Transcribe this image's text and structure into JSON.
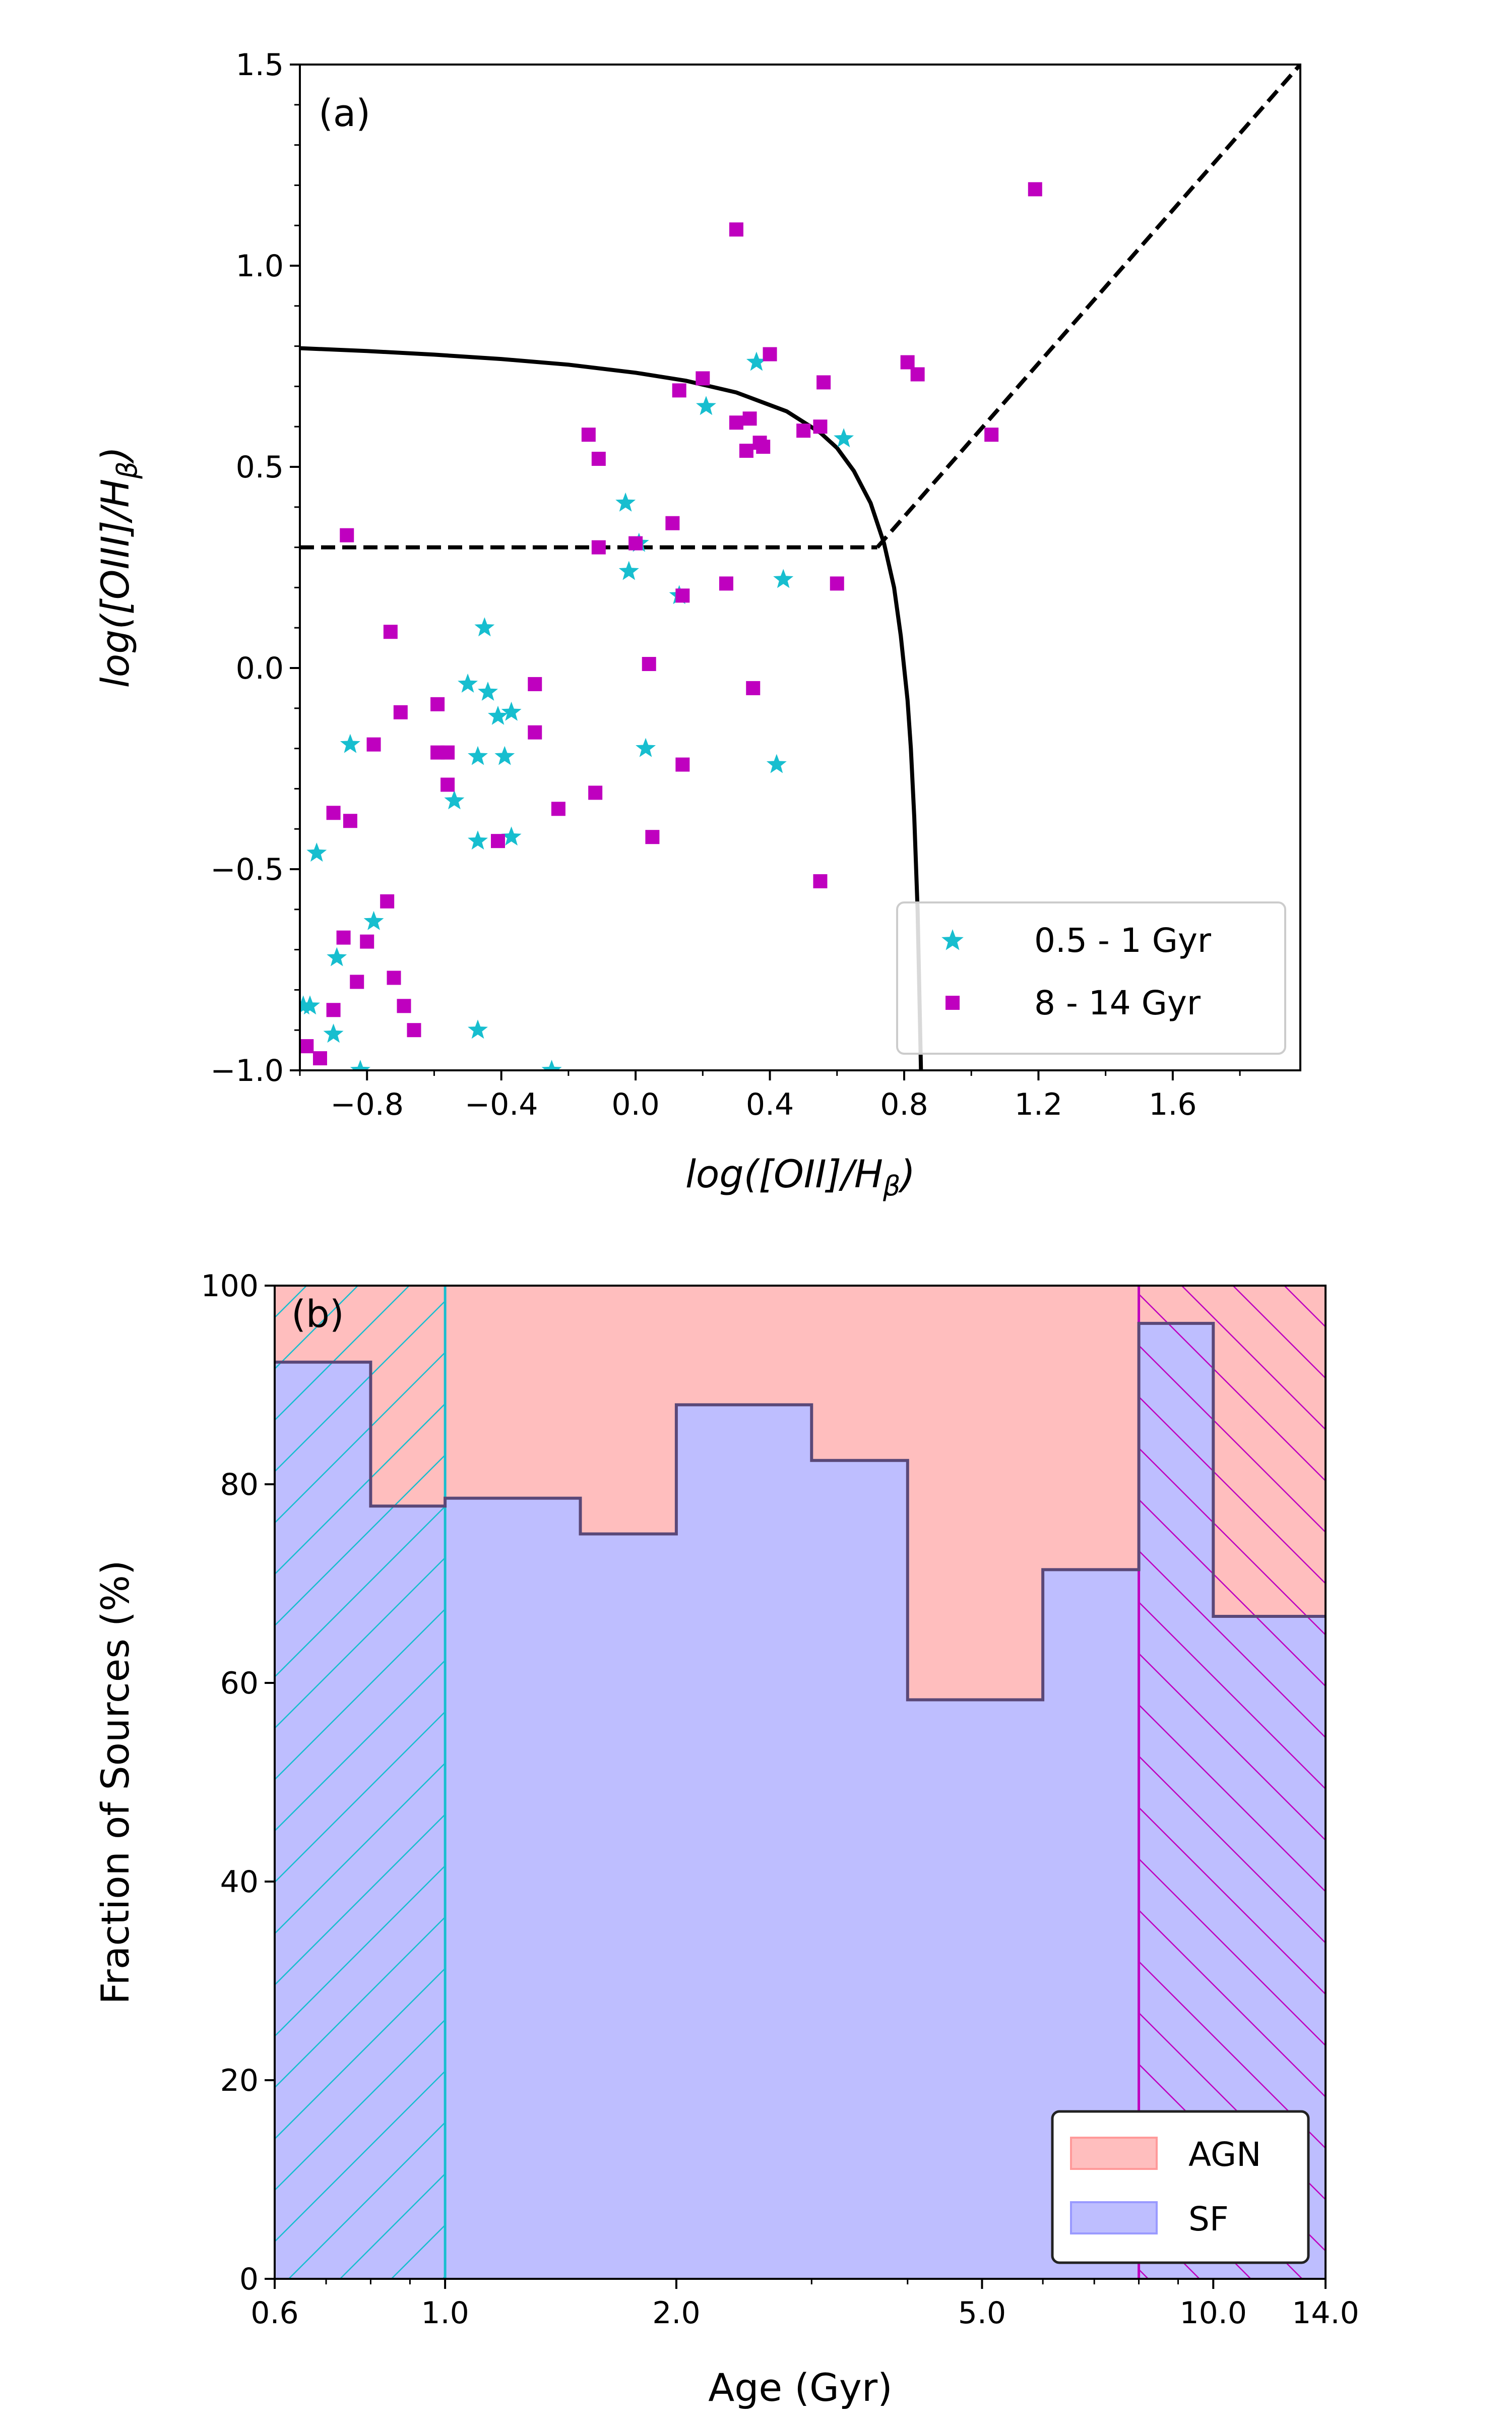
{
  "colors": {
    "young": "#17becf",
    "old": "#bf00bf",
    "agn": "#ffbebe",
    "sf": "#bebeff",
    "sf_edge": "#5a4878"
  },
  "chart_data": [
    {
      "type": "scatter",
      "panel_label": "(a)",
      "xlabel": "log([OII]/H_β)",
      "ylabel": "log([OIII]/H_β)",
      "xlabel_parts": {
        "pre": "log([",
        "ion": "OII",
        "mid": "]/",
        "base": "H",
        "sub": "β",
        "post": ")"
      },
      "ylabel_parts": {
        "pre": "log([",
        "ion": "OIII",
        "mid": "]/",
        "base": "H",
        "sub": "β",
        "post": ")"
      },
      "xlim": [
        -1.0,
        1.98
      ],
      "ylim": [
        -1.0,
        1.5
      ],
      "xticks": [
        -0.8,
        -0.4,
        0.0,
        0.4,
        0.8,
        1.2,
        1.6
      ],
      "xtick_labels": [
        "−0.8",
        "−0.4",
        "0.0",
        "0.4",
        "0.8",
        "1.2",
        "1.6"
      ],
      "yticks": [
        -1.0,
        -0.5,
        0.0,
        0.5,
        1.0,
        1.5
      ],
      "ytick_labels": [
        "−1.0",
        "−0.5",
        "0.0",
        "0.5",
        "1.0",
        "1.5"
      ],
      "legend": {
        "location": "lower right",
        "entries": [
          "0.5 - 1 Gyr",
          "8 - 14 Gyr"
        ]
      },
      "lines": [
        {
          "name": "demarcation-curve",
          "style": "solid",
          "x": [
            -1.0,
            -0.8,
            -0.6,
            -0.4,
            -0.2,
            0.0,
            0.15,
            0.3,
            0.45,
            0.55,
            0.6,
            0.65,
            0.7,
            0.74,
            0.77,
            0.79,
            0.81,
            0.82,
            0.83,
            0.84,
            0.845,
            0.85
          ],
          "y": [
            0.795,
            0.788,
            0.779,
            0.768,
            0.754,
            0.734,
            0.714,
            0.685,
            0.638,
            0.585,
            0.547,
            0.49,
            0.41,
            0.31,
            0.2,
            0.08,
            -0.08,
            -0.2,
            -0.37,
            -0.6,
            -0.8,
            -1.0
          ]
        },
        {
          "name": "horizontal-dashed",
          "style": "dashed",
          "x": [
            -1.0,
            0.72
          ],
          "y": [
            0.3,
            0.3
          ]
        },
        {
          "name": "diagonal-dashed",
          "style": "dashed",
          "x": [
            0.72,
            1.98
          ],
          "y": [
            0.3,
            1.5
          ]
        }
      ],
      "series": [
        {
          "name": "0.5 - 1 Gyr",
          "marker": "star",
          "color_key": "young",
          "x": [
            0.36,
            0.21,
            0.62,
            -0.03,
            -0.02,
            0.01,
            0.13,
            0.44,
            0.03,
            -0.45,
            -0.5,
            -0.44,
            -0.41,
            -0.37,
            -0.47,
            -0.39,
            -0.85,
            -0.54,
            -0.47,
            -0.37,
            -0.95,
            -0.97,
            -0.89,
            -0.78,
            -0.99,
            -0.9,
            -0.47,
            -0.82,
            -0.25,
            0.42
          ],
          "y": [
            0.76,
            0.65,
            0.57,
            0.41,
            0.24,
            0.31,
            0.18,
            0.22,
            -0.2,
            0.1,
            -0.04,
            -0.06,
            -0.12,
            -0.11,
            -0.22,
            -0.22,
            -0.19,
            -0.33,
            -0.43,
            -0.42,
            -0.46,
            -0.84,
            -0.72,
            -0.63,
            -0.84,
            -0.91,
            -0.9,
            -1.0,
            -1.0,
            -0.24
          ]
        },
        {
          "name": "8 - 14 Gyr",
          "marker": "square",
          "color_key": "old",
          "x": [
            1.19,
            0.3,
            0.4,
            0.34,
            0.2,
            0.13,
            0.56,
            0.81,
            0.84,
            0.38,
            0.3,
            0.33,
            0.37,
            0.55,
            0.5,
            1.06,
            -0.14,
            -0.11,
            0.11,
            -0.11,
            0.0,
            0.14,
            0.27,
            0.6,
            -0.86,
            -0.73,
            0.35,
            -0.3,
            -0.59,
            -0.3,
            -0.7,
            -0.56,
            -0.78,
            -0.59,
            -0.56,
            -0.12,
            -0.23,
            -0.9,
            -0.85,
            0.14,
            0.04,
            0.05,
            -0.41,
            -0.74,
            -0.87,
            -0.8,
            -0.72,
            -0.83,
            -0.69,
            -0.9,
            -0.66,
            -0.98,
            -0.94,
            0.55
          ],
          "y": [
            1.19,
            1.09,
            0.78,
            0.62,
            0.72,
            0.69,
            0.71,
            0.76,
            0.73,
            0.55,
            0.61,
            0.54,
            0.56,
            0.6,
            0.59,
            0.58,
            0.58,
            0.52,
            0.36,
            0.3,
            0.31,
            0.18,
            0.21,
            0.21,
            0.33,
            0.09,
            -0.05,
            -0.04,
            -0.09,
            -0.16,
            -0.11,
            -0.21,
            -0.19,
            -0.21,
            -0.29,
            -0.31,
            -0.35,
            -0.36,
            -0.38,
            -0.24,
            0.01,
            -0.42,
            -0.43,
            -0.58,
            -0.67,
            -0.68,
            -0.77,
            -0.78,
            -0.84,
            -0.85,
            -0.9,
            -0.94,
            -0.97,
            -0.53
          ]
        }
      ]
    },
    {
      "type": "area",
      "panel_label": "(b)",
      "xlabel": "Age (Gyr)",
      "ylabel": "Fraction of Sources (%)",
      "xscale": "log",
      "xlim": [
        0.6,
        14.0
      ],
      "ylim": [
        0,
        100
      ],
      "xticks": [
        0.6,
        1.0,
        2.0,
        5.0,
        10.0,
        14.0
      ],
      "xtick_labels": [
        "0.6",
        "1.0",
        "2.0",
        "5.0",
        "10.0",
        "14.0"
      ],
      "minor_xticks": [
        0.7,
        0.8,
        0.9,
        3.0,
        4.0,
        6.0,
        7.0,
        8.0,
        9.0
      ],
      "yticks": [
        0,
        20,
        40,
        60,
        80,
        100
      ],
      "ytick_labels": [
        "0",
        "20",
        "40",
        "60",
        "80",
        "100"
      ],
      "bin_edges": [
        0.6,
        0.8,
        1.0,
        1.5,
        2.0,
        3.0,
        4.0,
        6.0,
        8.0,
        10.0,
        14.0
      ],
      "series": [
        {
          "name": "SF",
          "color_key": "sf",
          "values": [
            92.3,
            77.8,
            78.6,
            75.0,
            88.0,
            82.4,
            58.3,
            71.4,
            96.2,
            66.7
          ]
        },
        {
          "name": "AGN",
          "color_key": "agn",
          "values": [
            7.7,
            22.2,
            21.4,
            25.0,
            12.0,
            17.6,
            41.7,
            28.6,
            3.8,
            33.3
          ]
        }
      ],
      "hatched_regions": [
        {
          "name": "0.5 - 1 Gyr",
          "x": [
            0.6,
            1.0
          ],
          "pattern": "forward",
          "color_key": "young"
        },
        {
          "name": "8 - 14 Gyr",
          "x": [
            8.0,
            14.0
          ],
          "pattern": "backward",
          "color_key": "old"
        }
      ],
      "legend": {
        "location": "lower right",
        "entries": [
          "AGN",
          "SF"
        ]
      }
    }
  ]
}
